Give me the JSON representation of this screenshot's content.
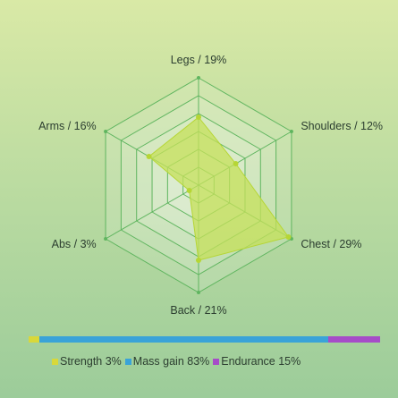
{
  "chart_data": {
    "type": "radar",
    "axes": [
      {
        "name": "Legs",
        "value": 19,
        "label": "Legs / 19%"
      },
      {
        "name": "Shoulders",
        "value": 12,
        "label": "Shoulders / 12%"
      },
      {
        "name": "Chest",
        "value": 29,
        "label": "Chest / 29%"
      },
      {
        "name": "Back",
        "value": 21,
        "label": "Back / 21%"
      },
      {
        "name": "Abs",
        "value": 3,
        "label": "Abs / 3%"
      },
      {
        "name": "Arms",
        "value": 16,
        "label": "Arms / 16%"
      }
    ],
    "rlim": [
      0,
      30
    ],
    "grid_rings": 6,
    "colors": {
      "fill": "#c6e05a",
      "stroke": "#b6d635",
      "grid": "#5fb55f",
      "grid_fill": "#ffffff"
    }
  },
  "breakdown": {
    "segments": [
      {
        "name": "Strength",
        "value": 3,
        "color": "#d8d83a",
        "label": "Strength 3%"
      },
      {
        "name": "Mass gain",
        "value": 83,
        "color": "#3aa3d8",
        "label": "Mass gain 83%"
      },
      {
        "name": "Endurance",
        "value": 15,
        "color": "#a64cc8",
        "label": "Endurance 15%"
      }
    ]
  }
}
